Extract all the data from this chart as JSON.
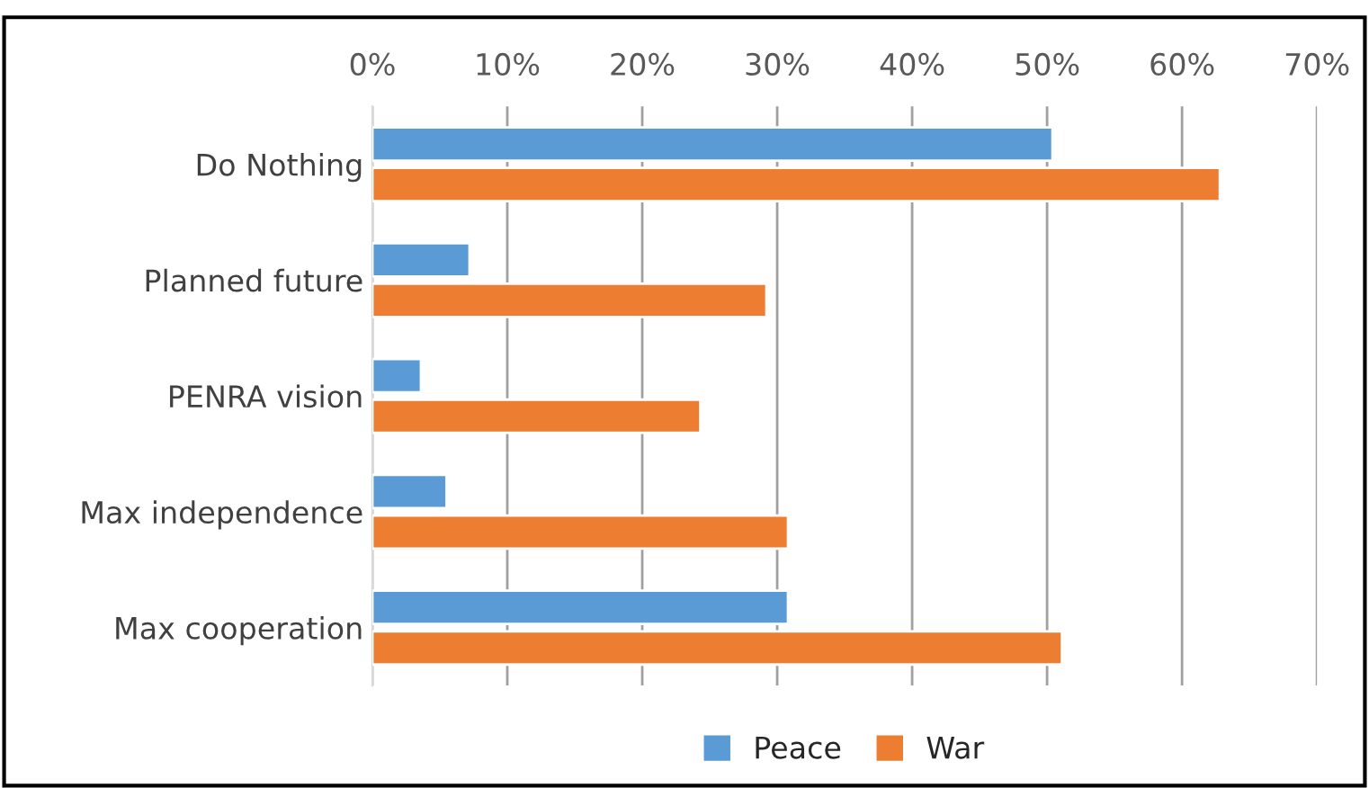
{
  "chart_data": {
    "type": "bar",
    "orientation": "horizontal",
    "categories": [
      "Do Nothing",
      "Planned future",
      "PENRA vision",
      "Max independence",
      "Max cooperation"
    ],
    "series": [
      {
        "name": "Peace",
        "color": "#5b9bd5",
        "values": [
          50.4,
          7.2,
          3.6,
          5.5,
          30.8
        ]
      },
      {
        "name": "War",
        "color": "#ed7d31",
        "values": [
          62.8,
          29.2,
          24.3,
          30.8,
          51.1
        ]
      }
    ],
    "xlim": [
      0,
      70
    ],
    "xticks": [
      {
        "value": 0,
        "label": "0%"
      },
      {
        "value": 10,
        "label": "10%"
      },
      {
        "value": 20,
        "label": "20%"
      },
      {
        "value": 30,
        "label": "30%"
      },
      {
        "value": 40,
        "label": "40%"
      },
      {
        "value": 50,
        "label": "50%"
      },
      {
        "value": 60,
        "label": "60%"
      },
      {
        "value": 70,
        "label": "70%"
      }
    ],
    "grid": "x",
    "legend": "bottom"
  }
}
